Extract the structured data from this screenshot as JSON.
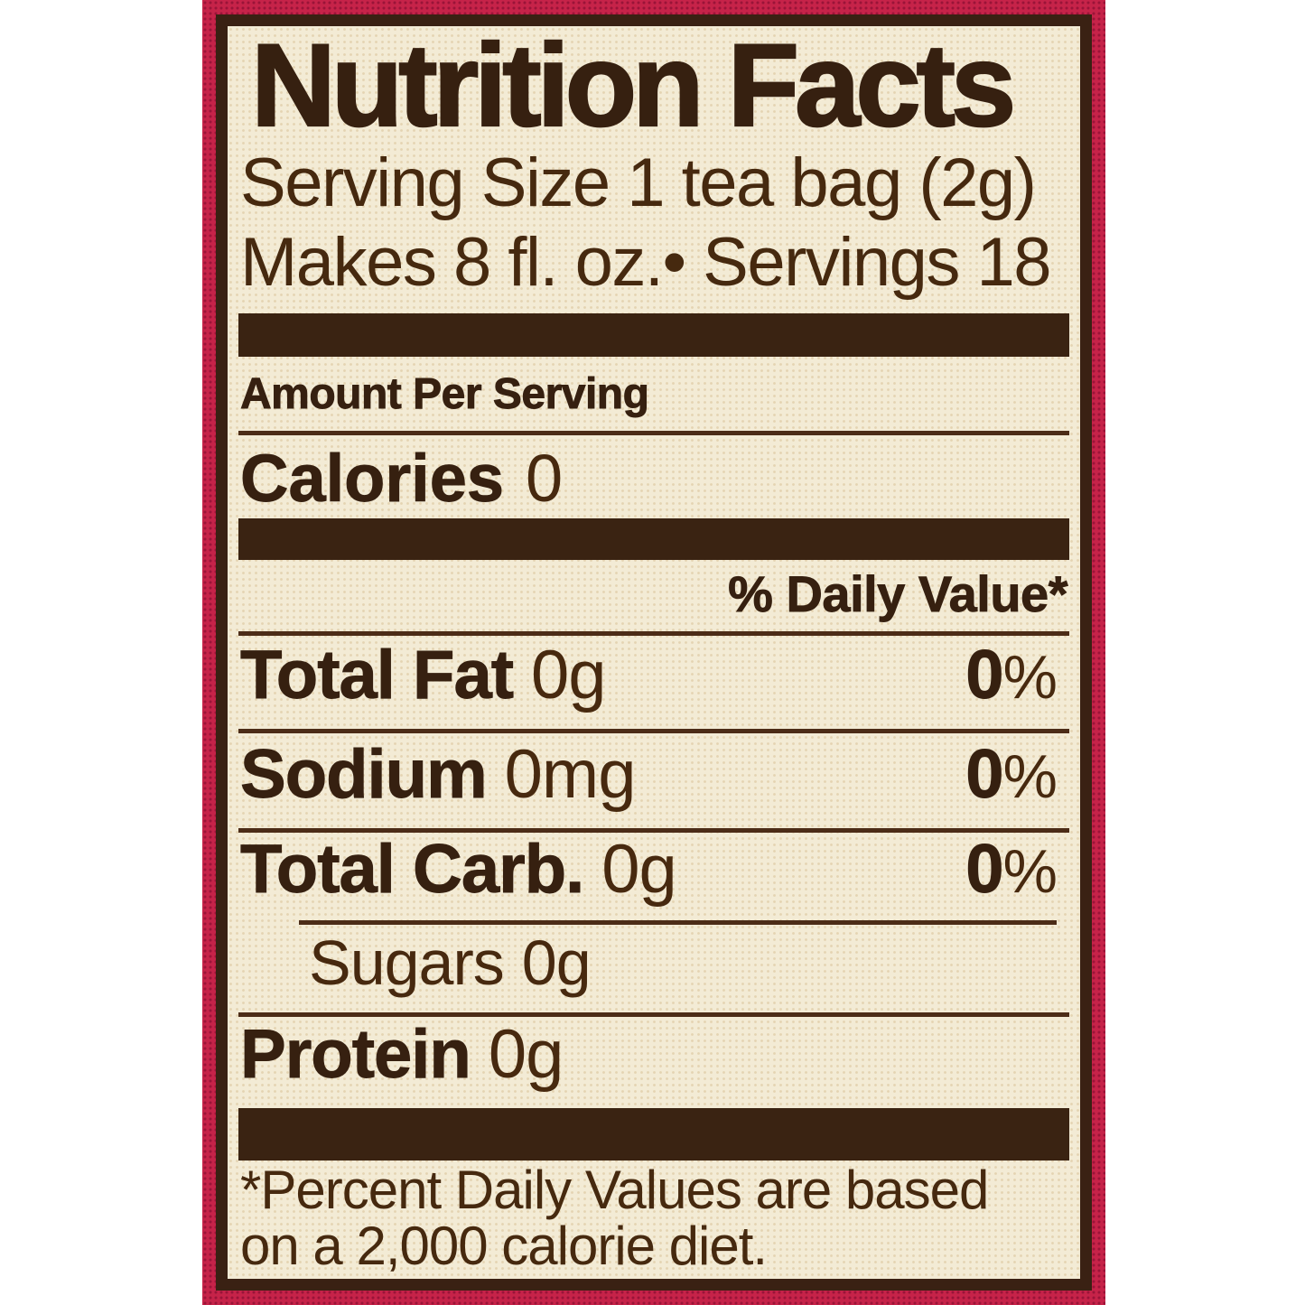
{
  "colors": {
    "box_red": "#c62349",
    "label_cream": "#f3ebd5",
    "ink_brown": "#3a2113"
  },
  "label": {
    "title": "Nutrition Facts",
    "serving_line1": "Serving Size 1 tea bag (2g)",
    "serving_line2": "Makes 8 fl. oz.• Servings 18",
    "amount_per_serving": "Amount Per Serving",
    "calories_label": "Calories",
    "calories_value": "0",
    "daily_value_header": "% Daily Value*",
    "percent_sign": "%",
    "rows": [
      {
        "name": "Total Fat",
        "amount": "0g",
        "dv": "0"
      },
      {
        "name": "Sodium",
        "amount": "0mg",
        "dv": "0"
      },
      {
        "name": "Total Carb.",
        "amount": "0g",
        "dv": "0"
      }
    ],
    "sugars_row": {
      "name": "Sugars",
      "amount": "0g"
    },
    "protein_row": {
      "name": "Protein",
      "amount": "0g"
    },
    "footnote_line1": "*Percent Daily Values are based",
    "footnote_line2": "on a 2,000 calorie diet."
  }
}
